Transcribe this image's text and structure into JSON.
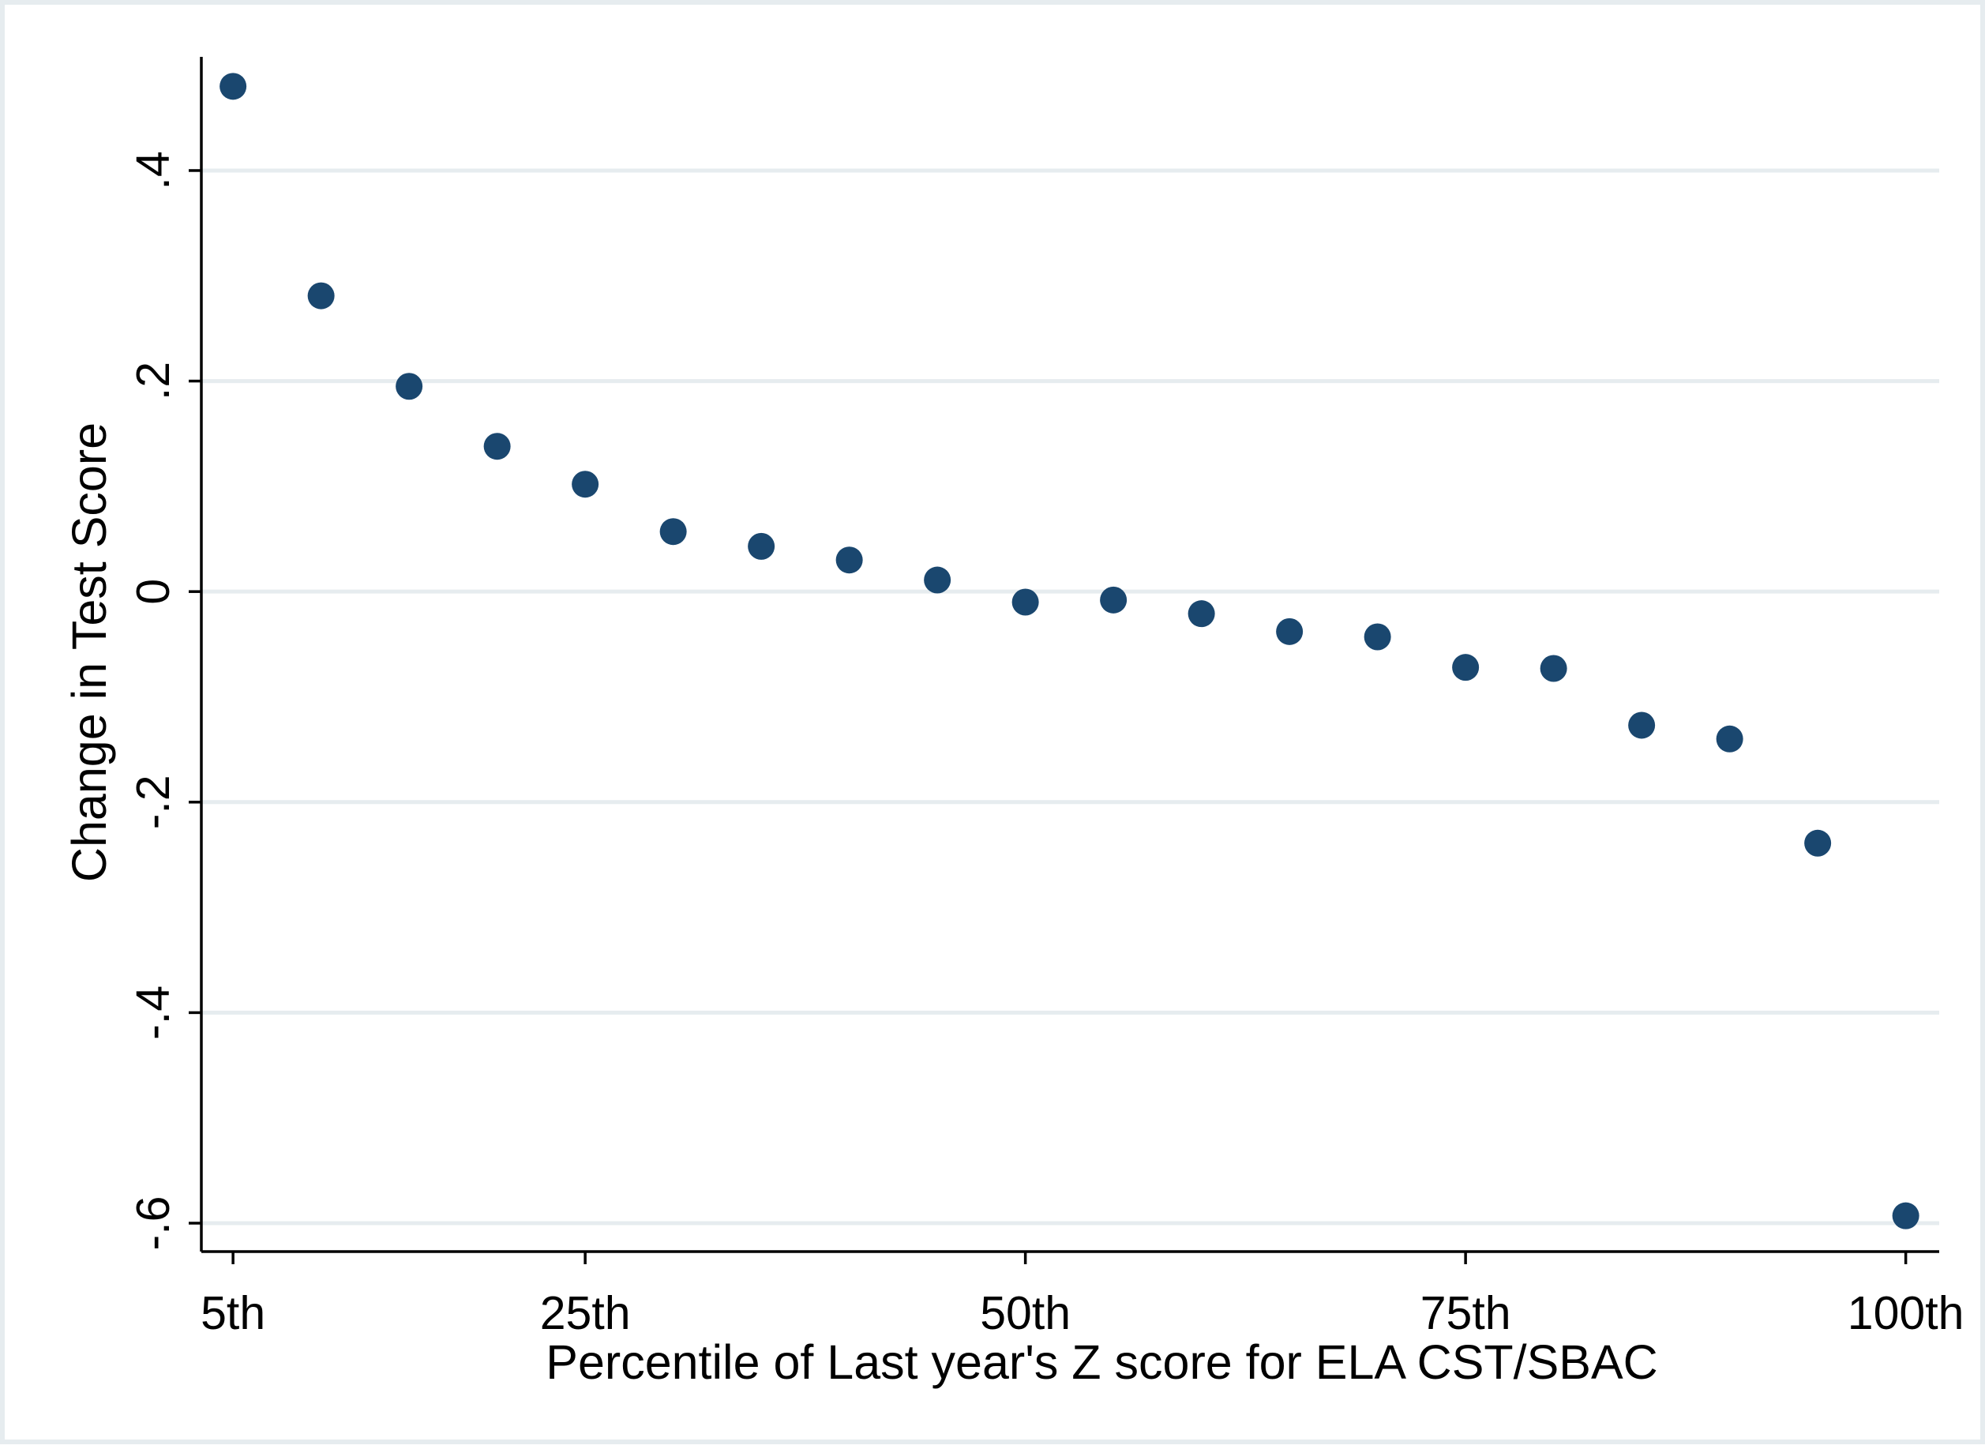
{
  "chart_data": {
    "type": "scatter",
    "title": "",
    "xlabel": "Percentile of Last year's Z score for ELA CST/SBAC",
    "ylabel": "Change in Test Score",
    "x": [
      5,
      10,
      15,
      20,
      25,
      30,
      35,
      40,
      45,
      50,
      55,
      60,
      65,
      70,
      75,
      80,
      85,
      90,
      95,
      100
    ],
    "y": [
      0.48,
      0.281,
      0.195,
      0.138,
      0.102,
      0.057,
      0.043,
      0.03,
      0.011,
      -0.01,
      -0.008,
      -0.021,
      -0.038,
      -0.043,
      -0.072,
      -0.073,
      -0.127,
      -0.14,
      -0.239,
      -0.593
    ],
    "x_ticks": [
      {
        "value": 5,
        "label": "5th"
      },
      {
        "value": 25,
        "label": "25th"
      },
      {
        "value": 50,
        "label": "50th"
      },
      {
        "value": 75,
        "label": "75th"
      },
      {
        "value": 100,
        "label": "100th"
      }
    ],
    "y_ticks": [
      {
        "value": 0.4,
        "label": ".4"
      },
      {
        "value": 0.2,
        "label": ".2"
      },
      {
        "value": 0,
        "label": "0"
      },
      {
        "value": -0.2,
        "label": "-.2"
      },
      {
        "value": -0.4,
        "label": "-.4"
      },
      {
        "value": -0.6,
        "label": "-.6"
      }
    ],
    "xlim": [
      3.2,
      101.9
    ],
    "ylim": [
      -0.627,
      0.508
    ],
    "grid": "horizontal",
    "legend": "none",
    "colors": {
      "marker": "#1a476f",
      "grid": "#e6ecef",
      "axis": "#000000",
      "border": "#e6ecef"
    }
  }
}
